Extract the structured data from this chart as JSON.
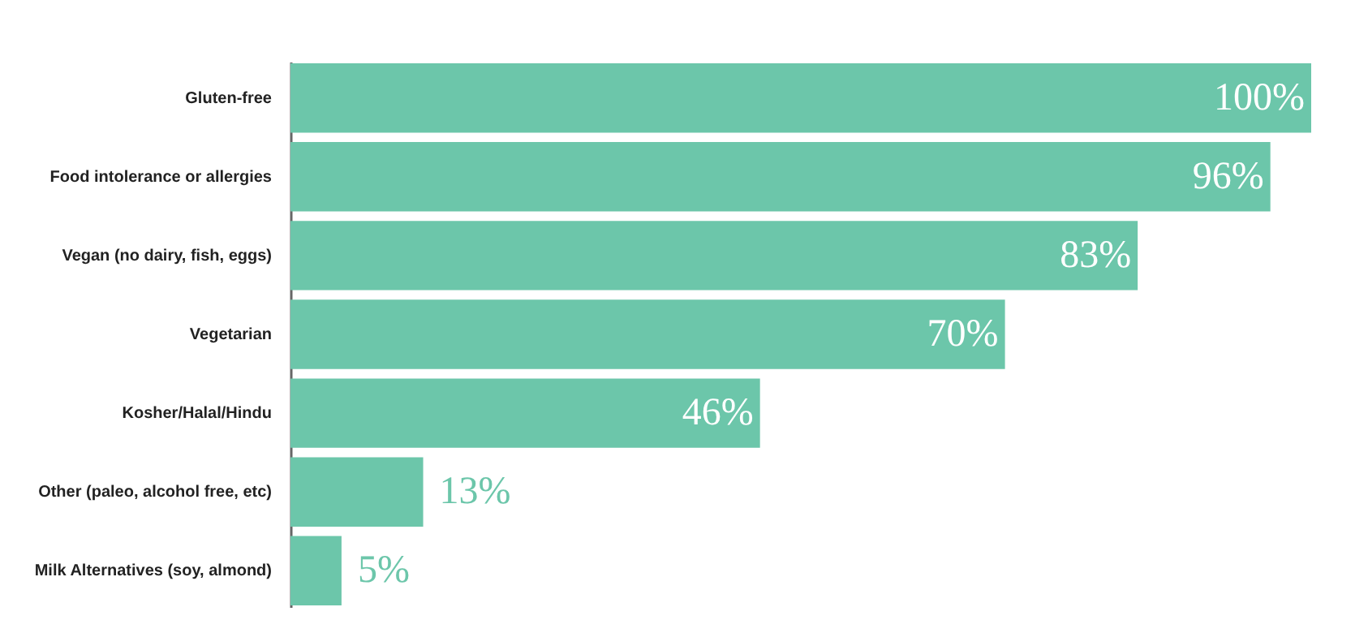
{
  "chart_data": {
    "type": "bar",
    "orientation": "horizontal",
    "categories": [
      "Gluten-free",
      "Food intolerance or allergies",
      "Vegan (no dairy, fish, eggs)",
      "Vegetarian",
      "Kosher/Halal/Hindu",
      "Other (paleo, alcohol free, etc)",
      "Milk Alternatives (soy, almond)"
    ],
    "values": [
      100,
      96,
      83,
      70,
      46,
      13,
      5
    ],
    "value_labels": [
      "100%",
      "96%",
      "83%",
      "70%",
      "46%",
      "13%",
      "5%"
    ],
    "color": "#6cc6aa",
    "grid": false
  }
}
